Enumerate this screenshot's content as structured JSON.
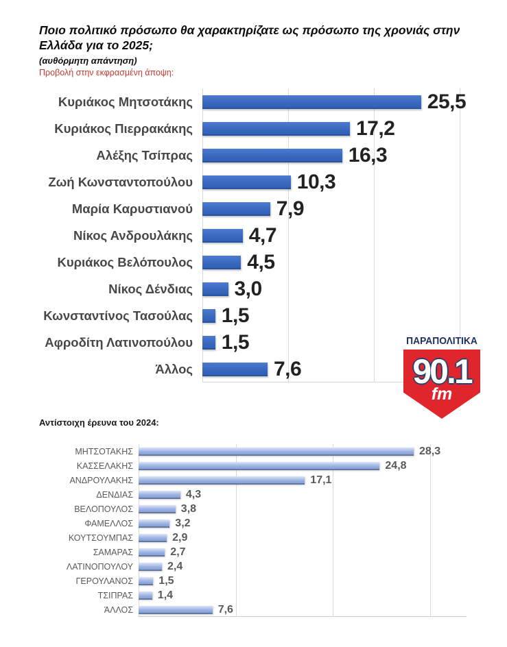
{
  "header": {
    "title": "Ποιο πολιτικό πρόσωπο θα χαρακτηρίζατε ως πρόσωπο της χρονιάς στην Ελλάδα για το 2025;",
    "subtitle": "(αυθόρμητη απάντηση)",
    "note": "Προβολή στην εκφρασμένη άποψη:",
    "note_color": "#c5392e"
  },
  "section_2024": {
    "label": "Αντίστοιχη έρευνα του 2024:"
  },
  "logo": {
    "brand": "ΠΑΡΑΠΟΛΙΤΙΚΑ",
    "frequency": "90.1",
    "band": "fm",
    "badge_color": "#e0262c",
    "brand_color": "#1d3160"
  },
  "chart_data": [
    {
      "type": "bar",
      "orientation": "horizontal",
      "title": "Ποιο πολιτικό πρόσωπο θα χαρακτηρίζατε ως πρόσωπο της χρονιάς στην Ελλάδα για το 2025; (αυθόρμητη απάντηση)",
      "categories": [
        "Κυριάκος Μητσοτάκης",
        "Κυριάκος Πιερρακάκης",
        "Αλέξης Τσίπρας",
        "Ζωή Κωνσταντοπούλου",
        "Μαρία Καρυστιανού",
        "Νίκος Ανδρουλάκης",
        "Κυριάκος Βελόπουλος",
        "Νίκος Δένδιας",
        "Κωνσταντίνος Τασούλας",
        "Αφροδίτη Λατινοπούλου",
        "Άλλος"
      ],
      "values": [
        25.5,
        17.2,
        16.3,
        10.3,
        7.9,
        4.7,
        4.5,
        3.0,
        1.5,
        1.5,
        7.6
      ],
      "value_labels": [
        "25,5",
        "17,2",
        "16,3",
        "10,3",
        "7,9",
        "4,7",
        "4,5",
        "3,0",
        "1,5",
        "1,5",
        "7,6"
      ],
      "xlabel": "",
      "ylabel": "",
      "xlim": [
        0,
        30
      ],
      "gridline_values": [
        0,
        10,
        20,
        30
      ],
      "grid": true,
      "legend": "none",
      "bar_color": "#3a69c0",
      "value_label_color": "#222222"
    },
    {
      "type": "bar",
      "orientation": "horizontal",
      "title": "Αντίστοιχη έρευνα του 2024",
      "categories": [
        "ΜΗΤΣΟΤΑΚΗΣ",
        "ΚΑΣΣΕΛΑΚΗΣ",
        "ΑΝΔΡΟΥΛΑΚΗΣ",
        "ΔΕΝΔΙΑΣ",
        "ΒΕΛΟΠΟΥΛΟΣ",
        "ΦΑΜΕΛΛΟΣ",
        "ΚΟΥΤΣΟΥΜΠΑΣ",
        "ΣΑΜΑΡΑΣ",
        "ΛΑΤΙΝΟΠΟΥΛΟΥ",
        "ΓΕΡΟΥΛΑΝΟΣ",
        "ΤΣΙΠΡΑΣ",
        "ΆΛΛΟΣ"
      ],
      "values": [
        28.3,
        24.8,
        17.1,
        4.3,
        3.8,
        3.2,
        2.9,
        2.7,
        2.4,
        1.5,
        1.4,
        7.6
      ],
      "value_labels": [
        "28,3",
        "24,8",
        "17,1",
        "4,3",
        "3,8",
        "3,2",
        "2,9",
        "2,7",
        "2,4",
        "1,5",
        "1,4",
        "7,6"
      ],
      "xlabel": "",
      "ylabel": "",
      "xlim": [
        0,
        30
      ],
      "gridline_values": [
        0,
        10,
        20,
        30
      ],
      "grid": true,
      "legend": "none",
      "bar_color": "#9db5e3",
      "value_label_color": "#595959"
    }
  ]
}
